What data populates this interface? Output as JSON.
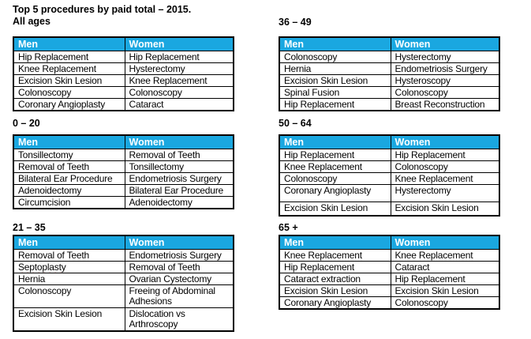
{
  "title": {
    "line1": "Top 5 procedures by paid total – 2015.",
    "line2": "All ages"
  },
  "column_headers": {
    "men": "Men",
    "women": "Women"
  },
  "colors": {
    "header_bg": "#1AA7E0",
    "header_text": "#FFFFFF",
    "border": "#000000",
    "misspelling_underline": "#C00000"
  },
  "tables": [
    {
      "age_group": "All ages",
      "men": [
        "Hip Replacement",
        "Knee Replacement",
        "Excision Skin Lesion",
        "Colonoscopy",
        "Coronary Angioplasty"
      ],
      "women": [
        "Hip Replacement",
        "Hysterectomy",
        "Knee Replacement",
        "Colonoscopy",
        "Cataract"
      ]
    },
    {
      "age_group": "0 – 20",
      "heading": "0 – 20",
      "men": [
        "Tonsillectomy",
        "Removal of Teeth",
        "Bilateral Ear Procedure",
        "Adenoidectomy",
        "Circumcision"
      ],
      "women": [
        "Removal of Teeth",
        "Tonsillectomy",
        "Endometriosis Surgery",
        "Bilateral Ear Procedure",
        "Adenoidectomy"
      ]
    },
    {
      "age_group": "21 – 35",
      "heading": "21 – 35",
      "men": [
        "Removal of Teeth",
        "Septoplasty",
        "Hernia",
        "Colonoscopy",
        "Excision Skin Lesion"
      ],
      "women": [
        "Endometriosis Surgery",
        "Removal of Teeth",
        "Ovarian Cystectomy",
        "Freeing of Abdominal\nAdhesions",
        "Dislocation vs\nArthroscopy"
      ]
    },
    {
      "age_group": "36 – 49",
      "heading": "36 – 49",
      "men": [
        "Colonoscopy",
        "Hernia",
        "Excision Skin Lesion",
        "Spinal Fusion",
        "Hip Replacement"
      ],
      "women": [
        "Hysterectomy",
        "Endometriosis Surgery",
        "Hysteroscopy",
        "Colonoscopy",
        "Breast Reconstruction"
      ]
    },
    {
      "age_group": "50 – 64",
      "heading": "50 – 64",
      "men": [
        "Hip Replacement",
        "Knee Replacement",
        "Colonoscopy",
        "Coronary Angioplasty",
        "Excision Skin Lesion"
      ],
      "women": [
        "Hip Replacement",
        "Colonoscopy",
        "Knee Replacement",
        "Hysterectomy",
        "Excision Skin Lesion"
      ]
    },
    {
      "age_group": "65 +",
      "heading": "65 +",
      "men": [
        "Knee Replacement",
        "Hip Replacement",
        "Cataract extraction",
        "Excision Skin Lesion",
        "Coronary Angioplasty"
      ],
      "women": [
        "Knee Replacement",
        "Cataract",
        "Hip Replacement",
        "Excision Skin Lesion",
        "Colonoscopy"
      ]
    }
  ]
}
